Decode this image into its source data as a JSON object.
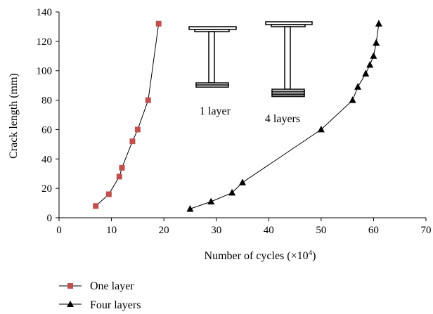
{
  "chart_data": {
    "type": "line",
    "title": "",
    "xlabel": "Number of cycles (×10",
    "xlabel_exp": "4",
    "xlabel_close": ")",
    "ylabel": "Crack length (mm)",
    "xlim": [
      0,
      70
    ],
    "ylim": [
      0,
      140
    ],
    "x_ticks": [
      0,
      10,
      20,
      30,
      40,
      50,
      60,
      70
    ],
    "y_ticks": [
      0,
      20,
      40,
      60,
      80,
      100,
      120,
      140
    ],
    "grid": false,
    "legend_position": "bottom-left",
    "series": [
      {
        "name": "One layer",
        "marker": "square",
        "color": "#c0504d",
        "line_color": "#000000",
        "x": [
          7,
          9.5,
          11.5,
          12,
          14,
          15,
          17,
          19
        ],
        "y": [
          8,
          16,
          28,
          34,
          52,
          60,
          80,
          132
        ]
      },
      {
        "name": "Four layers",
        "marker": "triangle",
        "color": "#000000",
        "line_color": "#000000",
        "x": [
          25,
          29,
          33,
          35,
          50,
          56,
          57,
          58.5,
          59.3,
          60,
          60.5,
          61
        ],
        "y": [
          6,
          11,
          17,
          24,
          60,
          80,
          89,
          98,
          104,
          110,
          119,
          132
        ]
      }
    ],
    "annotations": [
      {
        "id": "one_layer",
        "text": "1 layer"
      },
      {
        "id": "four_layers",
        "text": "4 layers"
      }
    ]
  }
}
